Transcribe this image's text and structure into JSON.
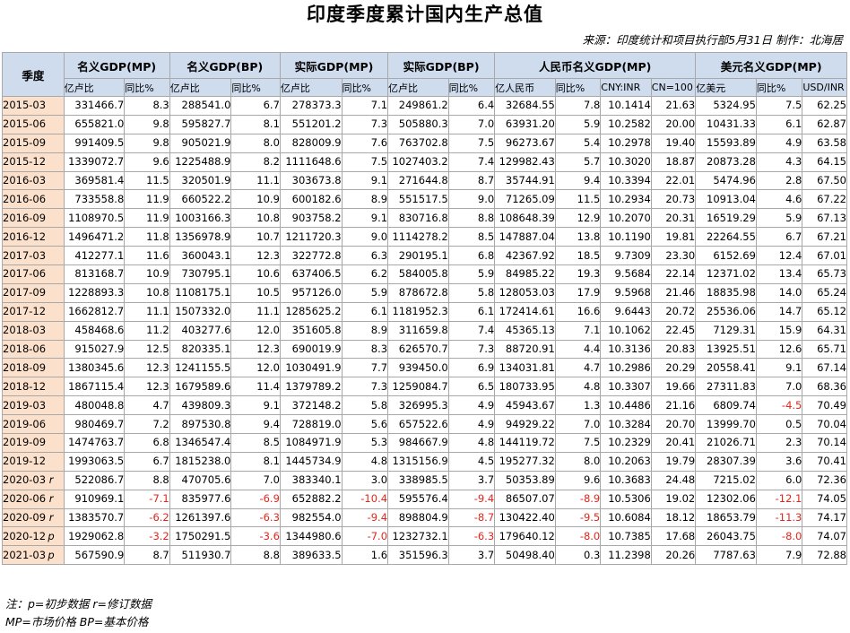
{
  "title": "印度季度累计国内生产总值",
  "source": "来源：印度统计和项目执行部5月31日  制作：北海居",
  "quarter_header": "季度",
  "groups": [
    {
      "label": "名义GDP(MP)",
      "subs": [
        "亿卢比",
        "同比%"
      ]
    },
    {
      "label": "名义GDP(BP)",
      "subs": [
        "亿卢比",
        "同比%"
      ]
    },
    {
      "label": "实际GDP(MP)",
      "subs": [
        "亿卢比",
        "同比%"
      ]
    },
    {
      "label": "实际GDP(BP)",
      "subs": [
        "亿卢比",
        "同比%"
      ]
    },
    {
      "label": "人民币名义GDP(MP)",
      "subs": [
        "亿人民币",
        "同比%",
        "CNY:INR",
        "CN=100"
      ]
    },
    {
      "label": "美元名义GDP(MP)",
      "subs": [
        "亿美元",
        "同比%",
        "USD/INR"
      ]
    }
  ],
  "rows": [
    {
      "q": "2015-03",
      "flag": "",
      "v": [
        "331466.7",
        "8.3",
        "288541.0",
        "6.7",
        "278373.3",
        "7.1",
        "249861.2",
        "6.4",
        "32684.55",
        "7.8",
        "10.1414",
        "21.63",
        "5324.95",
        "7.5",
        "62.25"
      ]
    },
    {
      "q": "2015-06",
      "flag": "",
      "v": [
        "655821.0",
        "9.8",
        "595827.7",
        "8.1",
        "551201.2",
        "7.3",
        "505880.3",
        "7.0",
        "63931.20",
        "5.9",
        "10.2582",
        "20.00",
        "10431.33",
        "6.1",
        "62.87"
      ]
    },
    {
      "q": "2015-09",
      "flag": "",
      "v": [
        "991409.5",
        "9.8",
        "905021.9",
        "8.0",
        "828009.9",
        "7.6",
        "763702.8",
        "7.5",
        "96273.67",
        "5.4",
        "10.2978",
        "19.40",
        "15593.89",
        "4.9",
        "63.58"
      ]
    },
    {
      "q": "2015-12",
      "flag": "",
      "v": [
        "1339072.7",
        "9.6",
        "1225488.9",
        "8.2",
        "1111648.6",
        "7.5",
        "1027403.2",
        "7.4",
        "129982.43",
        "5.7",
        "10.3020",
        "18.87",
        "20873.28",
        "4.3",
        "64.15"
      ]
    },
    {
      "q": "2016-03",
      "flag": "",
      "v": [
        "369581.4",
        "11.5",
        "320501.9",
        "11.1",
        "303673.8",
        "9.1",
        "271644.8",
        "8.7",
        "35744.91",
        "9.4",
        "10.3394",
        "22.01",
        "5474.96",
        "2.8",
        "67.50"
      ]
    },
    {
      "q": "2016-06",
      "flag": "",
      "v": [
        "733558.8",
        "11.9",
        "660522.2",
        "10.9",
        "600182.6",
        "8.9",
        "551517.5",
        "9.0",
        "71265.09",
        "11.5",
        "10.2934",
        "20.73",
        "10913.04",
        "4.6",
        "67.22"
      ]
    },
    {
      "q": "2016-09",
      "flag": "",
      "v": [
        "1108970.5",
        "11.9",
        "1003166.3",
        "10.8",
        "903758.2",
        "9.1",
        "830716.8",
        "8.8",
        "108648.39",
        "12.9",
        "10.2070",
        "20.31",
        "16519.29",
        "5.9",
        "67.13"
      ]
    },
    {
      "q": "2016-12",
      "flag": "",
      "v": [
        "1496471.2",
        "11.8",
        "1356978.9",
        "10.7",
        "1211720.3",
        "9.0",
        "1114278.2",
        "8.5",
        "147887.04",
        "13.8",
        "10.1190",
        "19.81",
        "22264.55",
        "6.7",
        "67.21"
      ]
    },
    {
      "q": "2017-03",
      "flag": "",
      "v": [
        "412277.1",
        "11.6",
        "360043.1",
        "12.3",
        "322772.8",
        "6.3",
        "290195.1",
        "6.8",
        "42367.92",
        "18.5",
        "9.7309",
        "23.30",
        "6152.69",
        "12.4",
        "67.01"
      ]
    },
    {
      "q": "2017-06",
      "flag": "",
      "v": [
        "813168.7",
        "10.9",
        "730795.1",
        "10.6",
        "637406.5",
        "6.2",
        "584005.8",
        "5.9",
        "84985.22",
        "19.3",
        "9.5684",
        "22.14",
        "12371.02",
        "13.4",
        "65.73"
      ]
    },
    {
      "q": "2017-09",
      "flag": "",
      "v": [
        "1228893.3",
        "10.8",
        "1108175.1",
        "10.5",
        "957126.0",
        "5.9",
        "878672.8",
        "5.8",
        "128053.03",
        "17.9",
        "9.5968",
        "21.46",
        "18835.98",
        "14.0",
        "65.24"
      ]
    },
    {
      "q": "2017-12",
      "flag": "",
      "v": [
        "1662812.7",
        "11.1",
        "1507332.0",
        "11.1",
        "1285625.2",
        "6.1",
        "1181952.3",
        "6.1",
        "172414.61",
        "16.6",
        "9.6443",
        "20.72",
        "25536.06",
        "14.7",
        "65.12"
      ]
    },
    {
      "q": "2018-03",
      "flag": "",
      "v": [
        "458468.6",
        "11.2",
        "403277.6",
        "12.0",
        "351605.8",
        "8.9",
        "311659.8",
        "7.4",
        "45365.13",
        "7.1",
        "10.1062",
        "22.45",
        "7129.31",
        "15.9",
        "64.31"
      ]
    },
    {
      "q": "2018-06",
      "flag": "",
      "v": [
        "915027.9",
        "12.5",
        "820335.1",
        "12.3",
        "690019.9",
        "8.3",
        "626570.7",
        "7.3",
        "88720.91",
        "4.4",
        "10.3136",
        "20.83",
        "13925.51",
        "12.6",
        "65.71"
      ]
    },
    {
      "q": "2018-09",
      "flag": "",
      "v": [
        "1380345.6",
        "12.3",
        "1241155.5",
        "12.0",
        "1030491.9",
        "7.7",
        "939450.0",
        "6.9",
        "134031.81",
        "4.7",
        "10.2986",
        "20.29",
        "20558.41",
        "9.1",
        "67.14"
      ]
    },
    {
      "q": "2018-12",
      "flag": "",
      "v": [
        "1867115.4",
        "12.3",
        "1679589.6",
        "11.4",
        "1379789.2",
        "7.3",
        "1259084.7",
        "6.5",
        "180733.95",
        "4.8",
        "10.3307",
        "19.66",
        "27311.83",
        "7.0",
        "68.36"
      ]
    },
    {
      "q": "2019-03",
      "flag": "",
      "v": [
        "480048.8",
        "4.7",
        "439809.3",
        "9.1",
        "372148.2",
        "5.8",
        "326995.3",
        "4.9",
        "45943.67",
        "1.3",
        "10.4486",
        "21.16",
        "6809.74",
        "-4.5",
        "70.49"
      ]
    },
    {
      "q": "2019-06",
      "flag": "",
      "v": [
        "980469.7",
        "7.2",
        "897530.8",
        "9.4",
        "728819.0",
        "5.6",
        "657522.6",
        "4.9",
        "94929.22",
        "7.0",
        "10.3284",
        "20.70",
        "13999.70",
        "0.5",
        "70.04"
      ]
    },
    {
      "q": "2019-09",
      "flag": "",
      "v": [
        "1474763.7",
        "6.8",
        "1346547.4",
        "8.5",
        "1084971.9",
        "5.3",
        "984667.9",
        "4.8",
        "144119.72",
        "7.5",
        "10.2329",
        "20.41",
        "21026.71",
        "2.3",
        "70.14"
      ]
    },
    {
      "q": "2019-12",
      "flag": "",
      "v": [
        "1993063.5",
        "6.7",
        "1815238.0",
        "8.1",
        "1445734.9",
        "4.8",
        "1315156.9",
        "4.5",
        "195277.32",
        "8.0",
        "10.2063",
        "19.79",
        "28307.39",
        "3.6",
        "70.41"
      ]
    },
    {
      "q": "2020-03",
      "flag": "r",
      "v": [
        "522086.7",
        "8.8",
        "470705.6",
        "7.0",
        "383340.1",
        "3.0",
        "338985.5",
        "3.7",
        "50353.89",
        "9.6",
        "10.3683",
        "24.48",
        "7215.02",
        "6.0",
        "72.36"
      ]
    },
    {
      "q": "2020-06",
      "flag": "r",
      "v": [
        "910969.1",
        "-7.1",
        "835977.6",
        "-6.9",
        "652882.2",
        "-10.4",
        "595576.4",
        "-9.4",
        "86507.07",
        "-8.9",
        "10.5306",
        "19.02",
        "12302.06",
        "-12.1",
        "74.05"
      ]
    },
    {
      "q": "2020-09",
      "flag": "r",
      "v": [
        "1383570.7",
        "-6.2",
        "1261397.6",
        "-6.3",
        "982554.0",
        "-9.4",
        "898804.9",
        "-8.7",
        "130422.40",
        "-9.5",
        "10.6084",
        "18.12",
        "18653.79",
        "-11.3",
        "74.17"
      ]
    },
    {
      "q": "2020-12",
      "flag": "p",
      "v": [
        "1929062.8",
        "-3.2",
        "1750291.5",
        "-3.6",
        "1344980.6",
        "-7.0",
        "1232732.1",
        "-6.3",
        "179640.12",
        "-8.0",
        "10.7385",
        "17.68",
        "26043.75",
        "-8.0",
        "74.07"
      ]
    },
    {
      "q": "2021-03",
      "flag": "p",
      "v": [
        "567590.9",
        "8.7",
        "511930.7",
        "8.8",
        "389633.5",
        "1.6",
        "351596.3",
        "3.7",
        "50498.40",
        "0.3",
        "11.2398",
        "20.26",
        "7787.63",
        "7.9",
        "72.88"
      ]
    }
  ],
  "notes": [
    "注：p=初步数据 r=修订数据",
    "MP=市场价格  BP=基本价格"
  ],
  "colors": {
    "header_bg": "#cfdcee",
    "quarter_bg": "#fbe1cc",
    "negative": "#e0271d",
    "border": "#a8a8a8"
  }
}
